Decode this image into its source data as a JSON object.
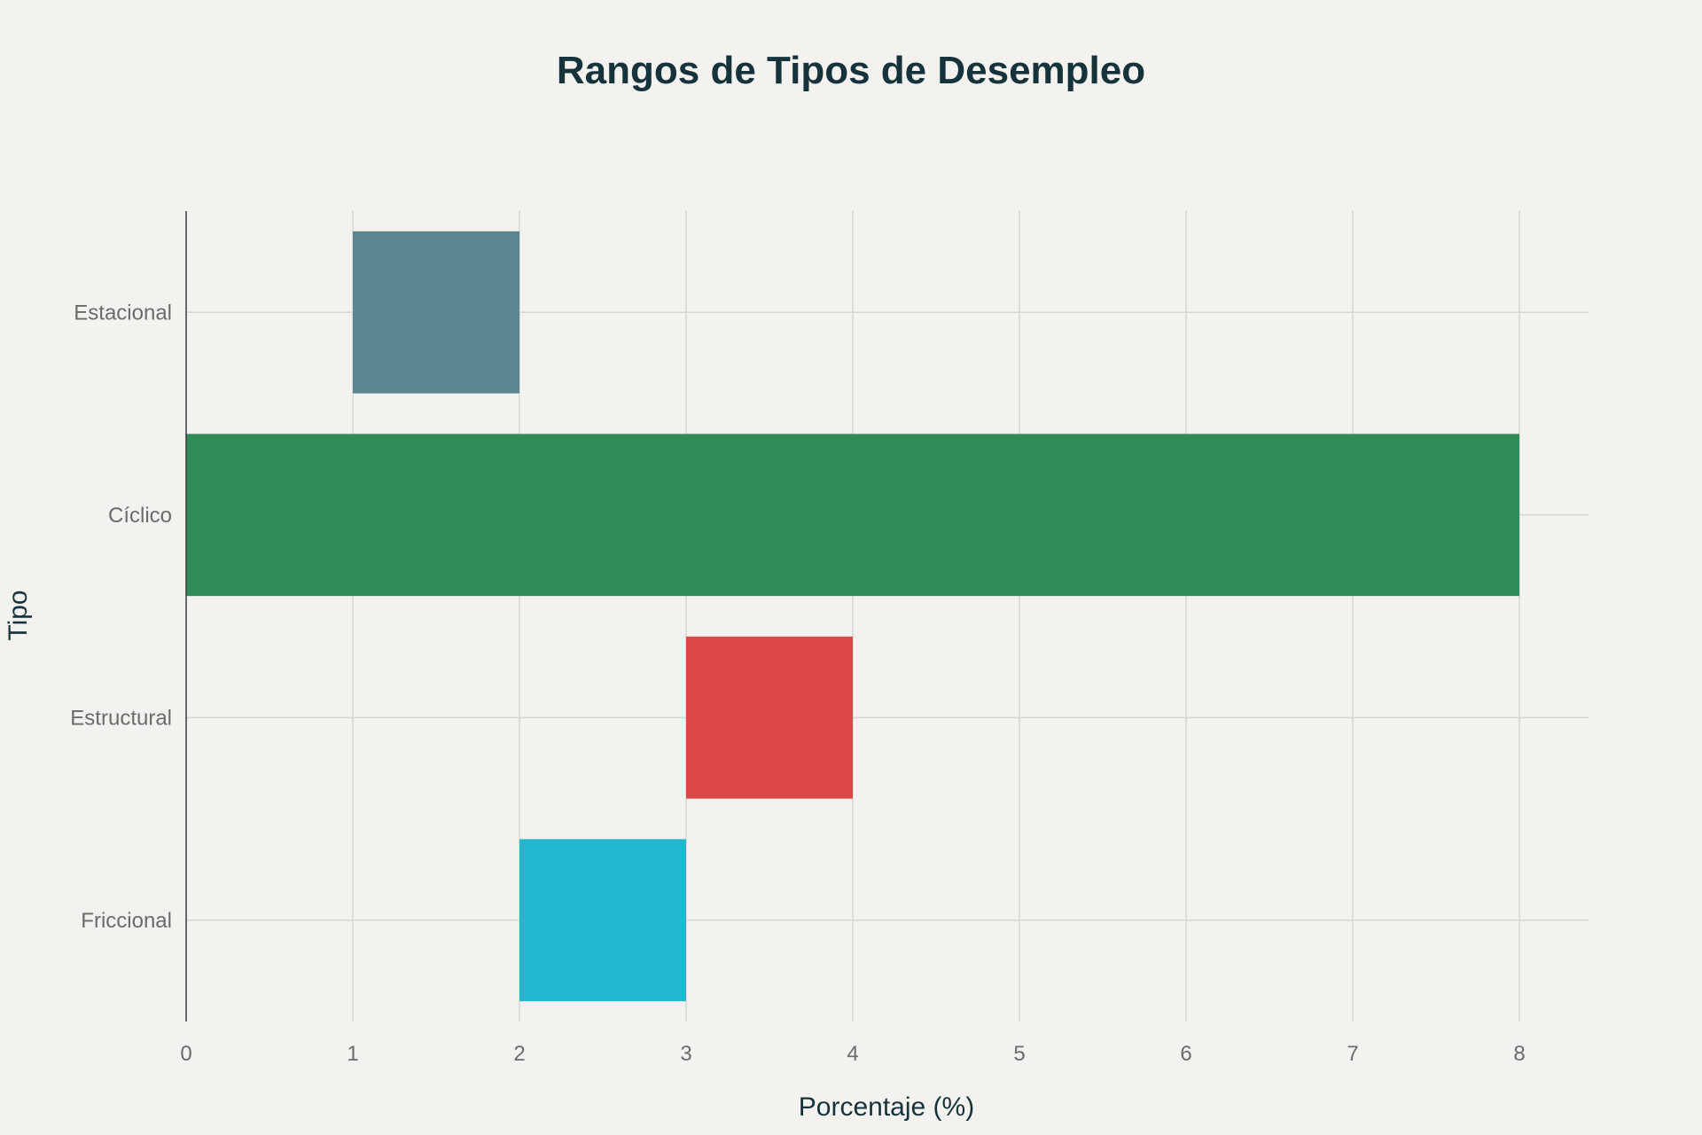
{
  "chart_data": {
    "type": "bar",
    "orientation": "horizontal",
    "style": "floating-range",
    "title": "Rangos de Tipos de Desempleo",
    "xlabel": "Porcentaje (%)",
    "ylabel": "Tipo",
    "xlim": [
      0,
      8.4
    ],
    "xticks": [
      0,
      1,
      2,
      3,
      4,
      5,
      6,
      7,
      8
    ],
    "grid": true,
    "legend": "none",
    "categories": [
      "Estacional",
      "Cíclico",
      "Estructural",
      "Friccional"
    ],
    "ranges": [
      {
        "category": "Estacional",
        "start": 1,
        "end": 2,
        "color": "#5d8790"
      },
      {
        "category": "Cíclico",
        "start": 0,
        "end": 8,
        "color": "#2f8b58"
      },
      {
        "category": "Estructural",
        "start": 3,
        "end": 4,
        "color": "#db4647"
      },
      {
        "category": "Friccional",
        "start": 2,
        "end": 3,
        "color": "#22b8cf"
      }
    ]
  }
}
